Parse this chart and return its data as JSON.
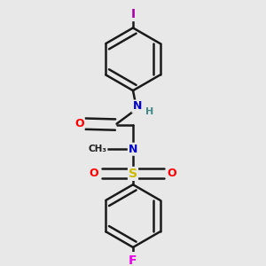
{
  "bg_color": "#e8e8e8",
  "bond_color": "#1a1a1a",
  "bond_width": 1.8,
  "atom_colors": {
    "O": "#ff0000",
    "N": "#0000cc",
    "S": "#ccbb00",
    "F": "#ee00ee",
    "I": "#aa00aa",
    "H": "#448888",
    "C": "#1a1a1a"
  },
  "font_size": 9,
  "fig_size": [
    3.0,
    3.0
  ],
  "dpi": 100
}
